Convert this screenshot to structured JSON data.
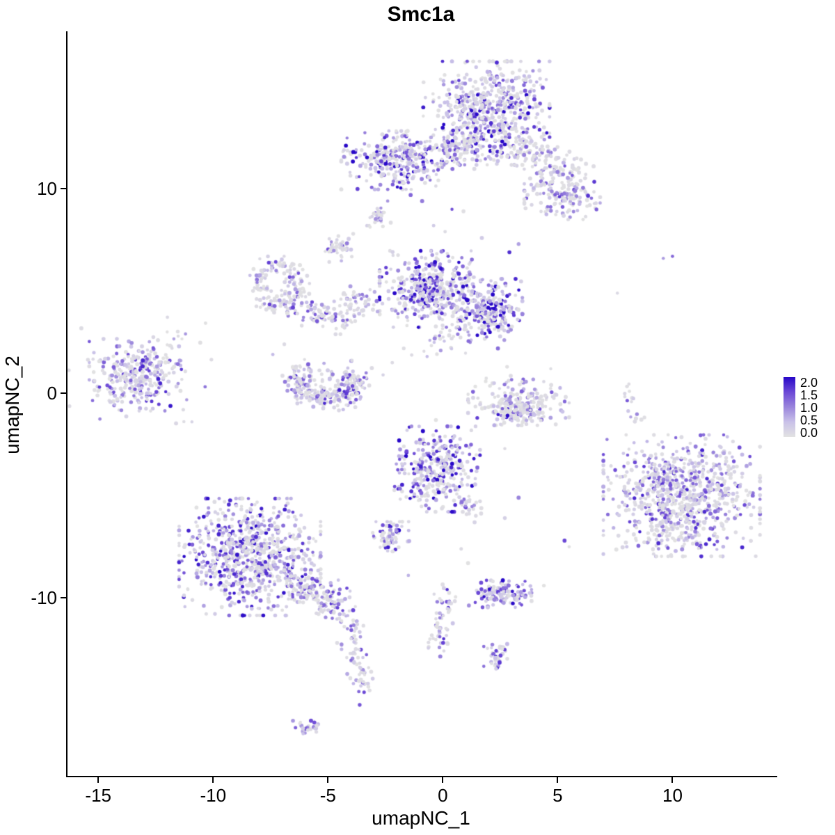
{
  "title": "Smc1a",
  "axes": {
    "x": {
      "label": "umapNC_1",
      "ticks": [
        {
          "v": -15,
          "label": "-15"
        },
        {
          "v": -10,
          "label": "-10"
        },
        {
          "v": -5,
          "label": "-5"
        },
        {
          "v": 0,
          "label": "0"
        },
        {
          "v": 5,
          "label": "5"
        },
        {
          "v": 10,
          "label": "10"
        }
      ]
    },
    "y": {
      "label": "umapNC_2",
      "ticks": [
        {
          "v": 10,
          "label": "10"
        },
        {
          "v": 0,
          "label": "0"
        },
        {
          "v": -10,
          "label": "-10"
        }
      ]
    }
  },
  "legend": {
    "labels": [
      "2.0",
      "1.5",
      "1.0",
      "0.5",
      "0.0"
    ],
    "values": [
      2.0,
      1.5,
      1.0,
      0.5,
      0.0
    ]
  },
  "chart_data": {
    "type": "scatter",
    "title": "Smc1a",
    "xlabel": "umapNC_1",
    "ylabel": "umapNC_2",
    "xlim": [
      -16.4,
      14.5
    ],
    "ylim": [
      -18.7,
      17.7
    ],
    "grid": false,
    "legend_position": "right",
    "color_scale": {
      "min": 0.0,
      "max": 2.0,
      "stops": [
        [
          0.0,
          "#E2E2E2"
        ],
        [
          0.5,
          "#C9C1E8"
        ],
        [
          1.0,
          "#9A85DC"
        ],
        [
          1.5,
          "#6C49D6"
        ],
        [
          2.0,
          "#2808C8"
        ]
      ]
    },
    "point_radius_px": 2.6,
    "seed": 1337,
    "clusters": [
      {
        "name": "top-main",
        "shape": "blob",
        "cx": 1.9,
        "cy": 13.7,
        "sx": 1.25,
        "sy": 1.15,
        "n": 620,
        "p0": 0.42,
        "scale": 0.95
      },
      {
        "name": "top-main-west",
        "shape": "blob",
        "cx": 0.55,
        "cy": 11.9,
        "sx": 0.55,
        "sy": 0.5,
        "n": 70,
        "p0": 0.5,
        "scale": 0.75
      },
      {
        "name": "top-arm",
        "shape": "line",
        "x1": 3.1,
        "y1": 12.2,
        "x2": 5.7,
        "y2": 10.5,
        "w": 0.45,
        "n": 150,
        "p0": 0.58,
        "scale": 0.65
      },
      {
        "name": "top-arm-blob",
        "shape": "blob",
        "cx": 5.2,
        "cy": 9.6,
        "sx": 0.75,
        "sy": 0.5,
        "n": 140,
        "p0": 0.52,
        "scale": 0.75
      },
      {
        "name": "upper-left",
        "shape": "blob",
        "cx": -2.0,
        "cy": 11.4,
        "sx": 1.1,
        "sy": 0.65,
        "n": 310,
        "p0": 0.34,
        "scale": 1.0
      },
      {
        "name": "clump-a",
        "shape": "blob",
        "cx": -2.75,
        "cy": 8.6,
        "sx": 0.22,
        "sy": 0.3,
        "n": 26,
        "p0": 0.5,
        "scale": 0.8
      },
      {
        "name": "clump-b",
        "shape": "blob",
        "cx": -4.5,
        "cy": 7.15,
        "sx": 0.28,
        "sy": 0.33,
        "n": 40,
        "p0": 0.45,
        "scale": 0.8
      },
      {
        "name": "loop-west",
        "shape": "arc",
        "cx": -7.1,
        "cy": 5.3,
        "rx": 0.85,
        "ry": 1.0,
        "a1": -30,
        "a2": 330,
        "jitter": 0.28,
        "n": 150,
        "p0": 0.5,
        "scale": 0.7
      },
      {
        "name": "chain-east",
        "shape": "line",
        "x1": -6.1,
        "y1": 4.2,
        "x2": -4.0,
        "y2": 3.6,
        "w": 0.33,
        "n": 80,
        "p0": 0.5,
        "scale": 0.7
      },
      {
        "name": "chain-blob",
        "shape": "blob",
        "cx": -3.6,
        "cy": 4.4,
        "sx": 0.42,
        "sy": 0.38,
        "n": 48,
        "p0": 0.55,
        "scale": 0.6
      },
      {
        "name": "central",
        "shape": "blob",
        "cx": -0.55,
        "cy": 5.1,
        "sx": 1.0,
        "sy": 0.85,
        "n": 420,
        "p0": 0.33,
        "scale": 1.0
      },
      {
        "name": "central-east",
        "shape": "blob",
        "cx": 2.1,
        "cy": 4.1,
        "sx": 0.62,
        "sy": 0.68,
        "n": 240,
        "p0": 0.28,
        "scale": 1.1
      },
      {
        "name": "central-south-scatter",
        "shape": "blob",
        "cx": 0.3,
        "cy": 2.9,
        "sx": 0.85,
        "sy": 0.5,
        "n": 40,
        "p0": 0.6,
        "scale": 0.6
      },
      {
        "name": "far-left",
        "shape": "blob",
        "cx": -13.3,
        "cy": 0.9,
        "sx": 0.95,
        "sy": 0.8,
        "n": 290,
        "p0": 0.4,
        "scale": 0.85
      },
      {
        "name": "far-left-halo",
        "shape": "blob",
        "cx": -13.2,
        "cy": 1.0,
        "sx": 1.5,
        "sy": 1.25,
        "n": 45,
        "p0": 0.65,
        "scale": 0.5
      },
      {
        "name": "mid-left-c",
        "shape": "arc",
        "cx": -5.0,
        "cy": 0.55,
        "rx": 1.25,
        "ry": 0.8,
        "a1": 140,
        "a2": 395,
        "jitter": 0.3,
        "n": 230,
        "p0": 0.46,
        "scale": 0.8
      },
      {
        "name": "mid-left-fill",
        "shape": "blob",
        "cx": -5.0,
        "cy": 0.4,
        "sx": 0.9,
        "sy": 0.55,
        "n": 45,
        "p0": 0.55,
        "scale": 0.7
      },
      {
        "name": "east-of-center",
        "shape": "blob",
        "cx": 3.3,
        "cy": -0.35,
        "sx": 1.0,
        "sy": 0.55,
        "n": 190,
        "p0": 0.62,
        "scale": 0.6
      },
      {
        "name": "east-of-center-stripe",
        "shape": "line",
        "x1": 2.4,
        "y1": -1.05,
        "x2": 4.3,
        "y2": -0.85,
        "w": 0.22,
        "n": 80,
        "p0": 0.45,
        "scale": 0.9
      },
      {
        "name": "center-south",
        "shape": "blob",
        "cx": -0.25,
        "cy": -3.7,
        "sx": 0.85,
        "sy": 0.95,
        "n": 330,
        "p0": 0.3,
        "scale": 1.0
      },
      {
        "name": "center-south-arm",
        "shape": "line",
        "x1": 0.8,
        "y1": -5.0,
        "x2": 1.4,
        "y2": -6.0,
        "w": 0.22,
        "n": 25,
        "p0": 0.45,
        "scale": 0.8
      },
      {
        "name": "clump-c",
        "shape": "blob",
        "cx": -2.3,
        "cy": -7.0,
        "sx": 0.38,
        "sy": 0.33,
        "n": 70,
        "p0": 0.38,
        "scale": 0.9
      },
      {
        "name": "south-west",
        "shape": "blob",
        "cx": -8.4,
        "cy": -8.0,
        "sx": 1.4,
        "sy": 1.3,
        "n": 780,
        "p0": 0.4,
        "scale": 0.9
      },
      {
        "name": "south-west-trail",
        "shape": "line",
        "x1": -6.7,
        "y1": -9.2,
        "x2": -4.4,
        "y2": -10.4,
        "w": 0.38,
        "n": 160,
        "p0": 0.45,
        "scale": 0.8
      },
      {
        "name": "south-tail",
        "shape": "line",
        "x1": -4.1,
        "y1": -10.8,
        "x2": -3.4,
        "y2": -14.7,
        "w": 0.28,
        "n": 80,
        "p0": 0.5,
        "scale": 0.7
      },
      {
        "name": "tail-clump",
        "shape": "blob",
        "cx": -5.9,
        "cy": -16.4,
        "sx": 0.3,
        "sy": 0.18,
        "n": 28,
        "p0": 0.5,
        "scale": 0.7
      },
      {
        "name": "south-center-trail",
        "shape": "line",
        "x1": 0.2,
        "y1": -9.6,
        "x2": -0.3,
        "y2": -12.6,
        "w": 0.24,
        "n": 60,
        "p0": 0.45,
        "scale": 0.8
      },
      {
        "name": "south-center-clump",
        "shape": "blob",
        "cx": 2.5,
        "cy": -9.8,
        "sx": 0.62,
        "sy": 0.3,
        "n": 120,
        "p0": 0.33,
        "scale": 0.95
      },
      {
        "name": "south-clump2",
        "shape": "blob",
        "cx": 2.4,
        "cy": -12.8,
        "sx": 0.28,
        "sy": 0.3,
        "n": 40,
        "p0": 0.4,
        "scale": 0.9
      },
      {
        "name": "far-right",
        "shape": "blob",
        "cx": 10.4,
        "cy": -5.0,
        "sx": 1.55,
        "sy": 1.35,
        "n": 850,
        "p0": 0.46,
        "scale": 0.8
      },
      {
        "name": "far-right-trail",
        "shape": "line",
        "x1": 8.0,
        "y1": 0.4,
        "x2": 8.5,
        "y2": -1.7,
        "w": 0.18,
        "n": 18,
        "p0": 0.5,
        "scale": 0.7
      },
      {
        "name": "sparse-singletons",
        "shape": "points",
        "p0": 0.45,
        "scale": 0.8,
        "pts": [
          [
            9.6,
            6.6
          ],
          [
            10.0,
            6.7
          ],
          [
            7.6,
            4.9
          ],
          [
            5.3,
            -7.2
          ],
          [
            5.5,
            -7.5
          ],
          [
            3.3,
            -5.1
          ],
          [
            2.7,
            -6.1
          ],
          [
            0.9,
            8.9
          ],
          [
            1.7,
            7.6
          ],
          [
            -0.4,
            8.2
          ],
          [
            0.1,
            7.9
          ],
          [
            0.4,
            9.0
          ],
          [
            -0.9,
            9.4
          ],
          [
            6.4,
            9.2
          ],
          [
            -11.4,
            1.6
          ],
          [
            -11.7,
            1.3
          ],
          [
            -3.9,
            7.8
          ],
          [
            -3.3,
            8.2
          ],
          [
            -2.4,
            9.4
          ],
          [
            -1.4,
            9.7
          ],
          [
            -1.7,
            2.2
          ],
          [
            -2.2,
            1.5
          ],
          [
            -2.6,
            0.9
          ],
          [
            -0.3,
            -1.3
          ],
          [
            0.1,
            -2.1
          ],
          [
            1.5,
            -1.2
          ],
          [
            2.7,
            -2.7
          ],
          [
            -6.9,
            2.4
          ],
          [
            -7.4,
            1.9
          ],
          [
            4.7,
            1.2
          ],
          [
            4.0,
            0.2
          ],
          [
            2.9,
            6.9
          ],
          [
            3.3,
            7.3
          ],
          [
            -9.5,
            -5.3
          ],
          [
            -10.2,
            -5.6
          ],
          [
            0.8,
            -7.6
          ],
          [
            1.1,
            -8.3
          ],
          [
            -1.5,
            -8.9
          ],
          [
            4.4,
            -9.4
          ],
          [
            -4.6,
            -12.2
          ],
          [
            -12.4,
            2.6
          ],
          [
            -12.0,
            3.0
          ],
          [
            2.4,
            2.2
          ],
          [
            2.8,
            1.3
          ]
        ]
      }
    ]
  }
}
